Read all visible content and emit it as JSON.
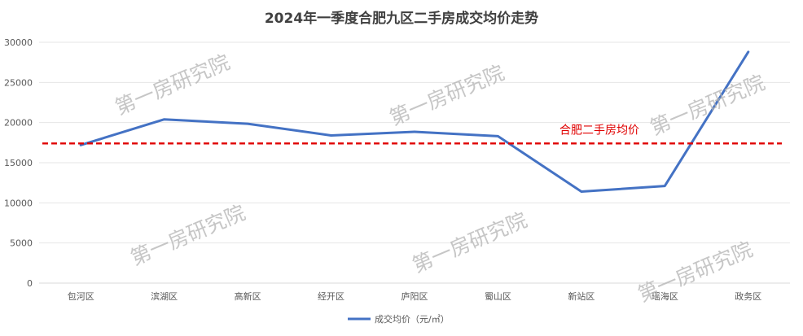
{
  "chart_data": {
    "type": "line",
    "title": "2024年一季度合肥九区二手房成交均价走势",
    "xlabel": "",
    "ylabel": "",
    "categories": [
      "包河区",
      "滨湖区",
      "高新区",
      "经开区",
      "庐阳区",
      "蜀山区",
      "新站区",
      "瑶海区",
      "政务区"
    ],
    "series": [
      {
        "name": "成交均价（元/㎡）",
        "values": [
          17200,
          20400,
          19850,
          18400,
          18850,
          18300,
          11400,
          12100,
          28800
        ],
        "color": "#4472c4"
      }
    ],
    "reference_line": {
      "label": "合肥二手房均价",
      "value": 17400,
      "color": "#e00000"
    },
    "ylim": [
      0,
      30000
    ],
    "yticks": [
      0,
      5000,
      10000,
      15000,
      20000,
      25000,
      30000
    ],
    "grid": true,
    "legend_position": "bottom"
  },
  "watermark": {
    "text": "第一房研究院"
  }
}
